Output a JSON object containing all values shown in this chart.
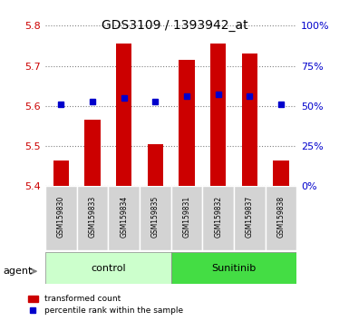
{
  "title": "GDS3109 / 1393942_at",
  "samples": [
    "GSM159830",
    "GSM159833",
    "GSM159834",
    "GSM159835",
    "GSM159831",
    "GSM159832",
    "GSM159837",
    "GSM159838"
  ],
  "bar_values": [
    5.465,
    5.565,
    5.755,
    5.505,
    5.715,
    5.755,
    5.73,
    5.465
  ],
  "percentile_values": [
    5.605,
    5.61,
    5.62,
    5.61,
    5.625,
    5.63,
    5.625,
    5.605
  ],
  "ylim_left": [
    5.4,
    5.8
  ],
  "yticks_left": [
    5.4,
    5.5,
    5.6,
    5.7,
    5.8
  ],
  "yticks_right": [
    0,
    25,
    50,
    75,
    100
  ],
  "yticks_right_vals": [
    5.4,
    5.5,
    5.6,
    5.7,
    5.8
  ],
  "bar_color": "#cc0000",
  "percentile_color": "#0000cc",
  "bar_bottom": 5.4,
  "groups": [
    {
      "label": "control",
      "indices": [
        0,
        1,
        2,
        3
      ],
      "color": "#ccffcc"
    },
    {
      "label": "Sunitinib",
      "indices": [
        4,
        5,
        6,
        7
      ],
      "color": "#00cc44"
    }
  ],
  "agent_label": "agent",
  "legend_bar_label": "transformed count",
  "legend_pct_label": "percentile rank within the sample",
  "title_fontsize": 12,
  "axis_label_color_left": "#cc0000",
  "axis_label_color_right": "#0000cc",
  "background_color": "#ffffff"
}
